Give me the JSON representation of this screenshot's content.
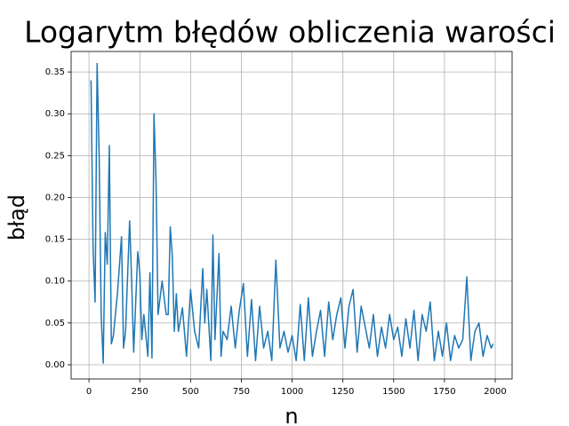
{
  "chart_data": {
    "type": "line",
    "title": "Logarytm błędów obliczenia warości",
    "x_label": "n",
    "y_label": "błąd",
    "x": [
      10,
      20,
      30,
      40,
      50,
      60,
      70,
      80,
      90,
      100,
      110,
      120,
      140,
      160,
      170,
      180,
      200,
      210,
      220,
      240,
      250,
      260,
      270,
      290,
      300,
      310,
      320,
      330,
      340,
      350,
      360,
      380,
      390,
      400,
      410,
      420,
      430,
      440,
      460,
      480,
      500,
      520,
      540,
      560,
      570,
      580,
      600,
      610,
      620,
      640,
      650,
      660,
      680,
      700,
      720,
      740,
      760,
      780,
      800,
      820,
      840,
      860,
      880,
      900,
      920,
      940,
      960,
      980,
      1000,
      1020,
      1040,
      1060,
      1080,
      1100,
      1120,
      1140,
      1160,
      1180,
      1200,
      1220,
      1240,
      1260,
      1280,
      1300,
      1320,
      1340,
      1360,
      1380,
      1400,
      1420,
      1440,
      1460,
      1480,
      1500,
      1520,
      1540,
      1560,
      1580,
      1600,
      1620,
      1640,
      1660,
      1680,
      1700,
      1720,
      1740,
      1760,
      1780,
      1800,
      1820,
      1840,
      1860,
      1880,
      1900,
      1920,
      1940,
      1960,
      1980,
      1990
    ],
    "series": [
      {
        "color": "#1f77b4",
        "values": [
          0.34,
          0.14,
          0.075,
          0.36,
          0.25,
          0.06,
          0.002,
          0.158,
          0.12,
          0.262,
          0.025,
          0.035,
          0.085,
          0.153,
          0.02,
          0.04,
          0.172,
          0.1,
          0.015,
          0.135,
          0.11,
          0.03,
          0.06,
          0.01,
          0.11,
          0.008,
          0.3,
          0.22,
          0.06,
          0.08,
          0.1,
          0.06,
          0.06,
          0.165,
          0.13,
          0.04,
          0.085,
          0.04,
          0.068,
          0.01,
          0.09,
          0.04,
          0.02,
          0.115,
          0.05,
          0.09,
          0.005,
          0.155,
          0.03,
          0.133,
          0.01,
          0.04,
          0.03,
          0.07,
          0.02,
          0.065,
          0.097,
          0.01,
          0.078,
          0.005,
          0.07,
          0.02,
          0.04,
          0.005,
          0.125,
          0.02,
          0.04,
          0.015,
          0.035,
          0.005,
          0.072,
          0.005,
          0.08,
          0.01,
          0.04,
          0.065,
          0.01,
          0.075,
          0.03,
          0.06,
          0.08,
          0.02,
          0.07,
          0.09,
          0.015,
          0.07,
          0.045,
          0.02,
          0.06,
          0.01,
          0.045,
          0.02,
          0.06,
          0.03,
          0.045,
          0.01,
          0.055,
          0.02,
          0.065,
          0.005,
          0.06,
          0.04,
          0.075,
          0.005,
          0.04,
          0.01,
          0.05,
          0.005,
          0.035,
          0.02,
          0.03,
          0.105,
          0.005,
          0.04,
          0.05,
          0.01,
          0.035,
          0.02,
          0.025
        ]
      }
    ],
    "xlim": [
      -88,
      2083
    ],
    "ylim": [
      -0.017,
      0.3745
    ],
    "xticks": [
      0,
      250,
      500,
      750,
      1000,
      1250,
      1500,
      1750,
      2000
    ],
    "yticks": [
      {
        "value": 0,
        "label": "0.00"
      },
      {
        "value": 0.05,
        "label": "0.05"
      },
      {
        "value": 0.1,
        "label": "0.10"
      },
      {
        "value": 0.15,
        "label": "0.15"
      },
      {
        "value": 0.2,
        "label": "0.20"
      },
      {
        "value": 0.25,
        "label": "0.25"
      },
      {
        "value": 0.3,
        "label": "0.30"
      },
      {
        "value": 0.35,
        "label": "0.35"
      }
    ],
    "grid": true
  }
}
